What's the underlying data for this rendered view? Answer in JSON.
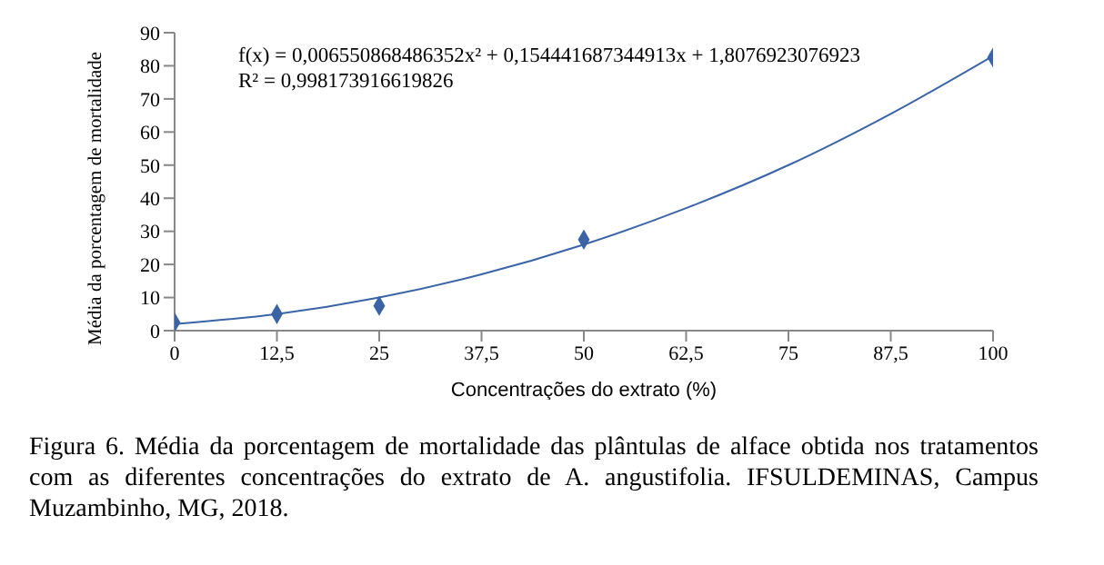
{
  "chart_data": {
    "type": "scatter",
    "xlabel": "Concentrações do extrato (%)",
    "ylabel": "Média da porcentagem de mortalidade",
    "series": [
      {
        "color": "#3a64a6",
        "marker": "diamond",
        "x": [
          0,
          12.5,
          25,
          50,
          100
        ],
        "values": [
          2.5,
          5,
          7.5,
          27.5,
          82.5
        ]
      },
      {
        "type": "line",
        "color": "#3a64a6",
        "marker": "none",
        "line_style": "solid",
        "x": [
          0,
          12.5,
          25,
          37.5,
          50,
          62.5,
          75,
          87.5,
          100
        ],
        "values": [
          2,
          5,
          10,
          17,
          26,
          37,
          50,
          65.5,
          83
        ]
      }
    ],
    "xlim": [
      0,
      100
    ],
    "xticks": [
      0,
      {
        "value": 12.5,
        "label": "12,5"
      },
      25,
      {
        "value": 37.5,
        "label": "37,5"
      },
      50,
      {
        "value": 62.5,
        "label": "62,5"
      },
      75,
      {
        "value": 87.5,
        "label": "87,5"
      },
      100
    ],
    "ylim": [
      0,
      90
    ],
    "yticks": [
      0,
      10,
      20,
      30,
      40,
      50,
      60,
      70,
      80,
      90
    ],
    "grid": false,
    "legend": false,
    "annotations": [
      "f(x) = 0,006550868486352x² + 0,154441687344913x + 1,8076923076923",
      "R² = 0,998173916619826",
      "Figura 6. Média da porcentagem de mortalidade das plântulas de alface obtida nos tratamentos com as diferentes concentrações do extrato de A. angustifolia. IFSULDEMINAS, Campus Muzambinho, MG, 2018."
    ]
  }
}
